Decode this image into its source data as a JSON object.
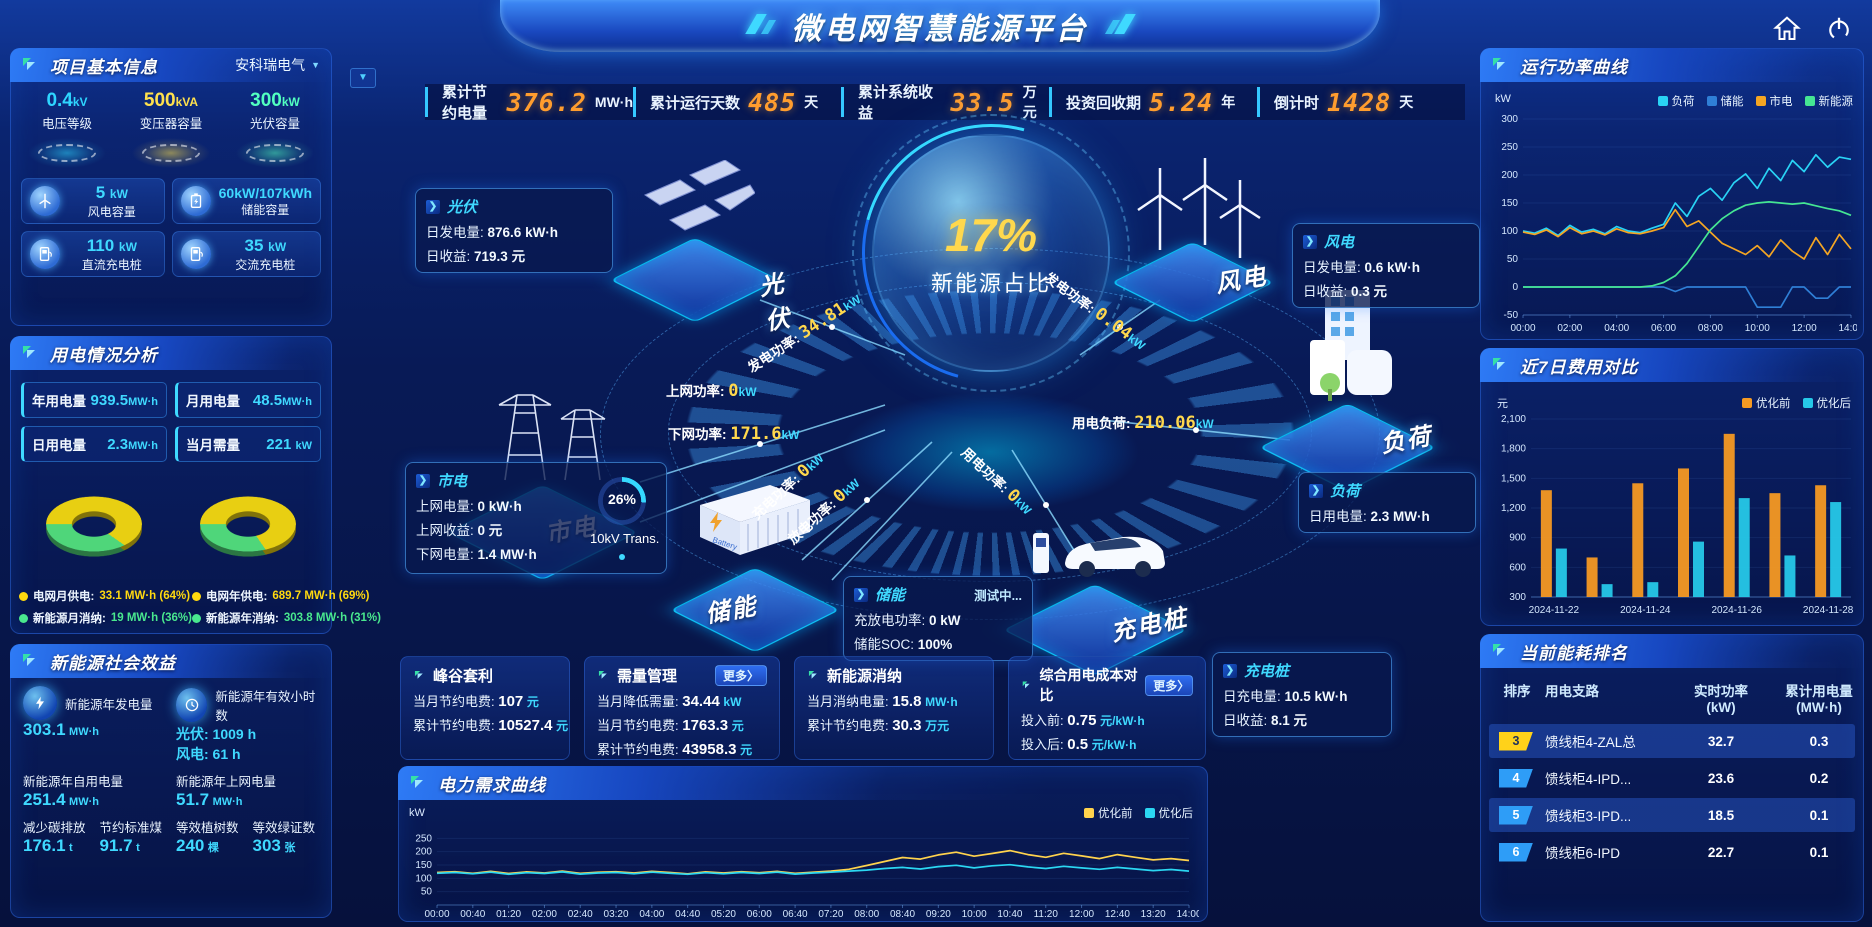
{
  "header": {
    "title": "微电网智慧能源平台"
  },
  "topbar": {
    "kpis": [
      {
        "label": "累计节约电量",
        "value": "376.2",
        "unit": "MW·h"
      },
      {
        "label": "累计运行天数",
        "value": "485",
        "unit": "天"
      },
      {
        "label": "累计系统收益",
        "value": "33.5",
        "unit": "万元"
      },
      {
        "label": "投资回收期",
        "value": "5.24",
        "unit": "年"
      },
      {
        "label": "倒计时",
        "value": "1428",
        "unit": "天"
      }
    ]
  },
  "project_panel": {
    "title": "项目基本信息",
    "company": "安科瑞电气",
    "pedestals": [
      {
        "value": "0.4",
        "unit": "kV",
        "label": "电压等级",
        "color": "#2ed5ff"
      },
      {
        "value": "500",
        "unit": "kVA",
        "label": "变压器容量",
        "color": "#ffe14d"
      },
      {
        "value": "300",
        "unit": "kW",
        "label": "光伏容量",
        "color": "#52ffc0"
      }
    ],
    "cards": [
      {
        "value": "5",
        "unit": "kW",
        "label": "风电容量",
        "icon": "wind-turbine-icon"
      },
      {
        "value": "60kW/107kWh",
        "unit": "",
        "label": "储能容量",
        "icon": "battery-icon"
      },
      {
        "value": "110",
        "unit": "kW",
        "label": "直流充电桩",
        "icon": "dc-charger-icon"
      },
      {
        "value": "35",
        "unit": "kW",
        "label": "交流充电桩",
        "icon": "ac-charger-icon"
      }
    ]
  },
  "usage_panel": {
    "title": "用电情况分析",
    "stats": [
      {
        "label": "年用电量",
        "value": "939.5",
        "unit": "MW·h"
      },
      {
        "label": "月用电量",
        "value": "48.5",
        "unit": "MW·h"
      },
      {
        "label": "日用电量",
        "value": "2.3",
        "unit": "MW·h"
      },
      {
        "label": "当月需量",
        "value": "221",
        "unit": "kW"
      }
    ],
    "month_donut": {
      "grid_pct": 64,
      "renewable_pct": 36
    },
    "year_donut": {
      "grid_pct": 69,
      "renewable_pct": 31
    },
    "legend": [
      {
        "label": "电网月供电:",
        "value": "33.1 MW·h (64%)",
        "color": "#ffd90f"
      },
      {
        "label": "新能源月消纳:",
        "value": "19 MW·h (36%)",
        "color": "#49e88e"
      },
      {
        "label": "电网年供电:",
        "value": "689.7 MW·h (69%)",
        "color": "#ffd90f"
      },
      {
        "label": "新能源年消纳:",
        "value": "303.8 MW·h (31%)",
        "color": "#49e88e"
      }
    ]
  },
  "benefit_panel": {
    "title": "新能源社会效益",
    "items": [
      {
        "label": "新能源年发电量",
        "value": "303.1",
        "unit": "MW·h"
      },
      {
        "label": "新能源年有效小时数",
        "value": "光伏: 1009 h",
        "value2": "风电: 61 h"
      },
      {
        "label": "新能源年自用电量",
        "value": "251.4",
        "unit": "MW·h"
      },
      {
        "label": "新能源年上网电量",
        "value": "51.7",
        "unit": "MW·h"
      },
      {
        "label": "减少碳排放",
        "value": "176.1",
        "unit": "t"
      },
      {
        "label": "节约标准煤",
        "value": "91.7",
        "unit": "t"
      },
      {
        "label": "等效植树数",
        "value": "240",
        "unit": "棵"
      },
      {
        "label": "等效绿证数",
        "value": "303",
        "unit": "张"
      }
    ]
  },
  "diagram": {
    "center": {
      "value": "17%",
      "label": "新能源占比"
    },
    "transformer": {
      "pct": "26%",
      "label": "10kV Trans."
    },
    "nodes": {
      "pv": "光伏",
      "wind": "风电",
      "grid": "市电",
      "load": "负荷",
      "storage": "储能",
      "charger": "充电桩"
    },
    "flows": [
      {
        "label": "发电功率:",
        "value": "34.81",
        "unit": "kW"
      },
      {
        "label": "发电功率:",
        "value": "0.04",
        "unit": "kW"
      },
      {
        "label": "上网功率:",
        "value": "0",
        "unit": "kW"
      },
      {
        "label": "下网功率:",
        "value": "171.6",
        "unit": "kW"
      },
      {
        "label": "用电负荷:",
        "value": "210.06",
        "unit": "kW"
      },
      {
        "label": "充电功率:",
        "value": "0",
        "unit": "kW"
      },
      {
        "label": "放电功率:",
        "value": "0",
        "unit": "kW"
      },
      {
        "label": "用电功率:",
        "value": "0",
        "unit": "kW"
      }
    ],
    "tooltips": {
      "pv": {
        "title": "光伏",
        "rows": [
          {
            "label": "日发电量:",
            "value": "876.6 kW·h"
          },
          {
            "label": "日收益:",
            "value": "719.3 元"
          }
        ]
      },
      "grid": {
        "title": "市电",
        "rows": [
          {
            "label": "上网电量:",
            "value": "0 kW·h"
          },
          {
            "label": "上网收益:",
            "value": "0 元"
          },
          {
            "label": "下网电量:",
            "value": "1.4 MW·h"
          }
        ]
      },
      "wind": {
        "title": "风电",
        "rows": [
          {
            "label": "日发电量:",
            "value": "0.6 kW·h"
          },
          {
            "label": "日收益:",
            "value": "0.3 元"
          }
        ]
      },
      "load": {
        "title": "负荷",
        "rows": [
          {
            "label": "日用电量:",
            "value": "2.3 MW·h"
          }
        ]
      },
      "storage": {
        "title": "储能",
        "badge": "测试中...",
        "rows": [
          {
            "label": "充放电功率:",
            "value": "0 kW"
          },
          {
            "label": "储能SOC:",
            "value": "100%"
          }
        ]
      },
      "charger": {
        "title": "充电桩",
        "rows": [
          {
            "label": "日充电量:",
            "value": "10.5 kW·h"
          },
          {
            "label": "日收益:",
            "value": "8.1 元"
          }
        ]
      }
    }
  },
  "strategy_cards": [
    {
      "title": "峰谷套利",
      "rows": [
        {
          "label": "当月节约电费:",
          "value": "107",
          "unit": "元"
        },
        {
          "label": "累计节约电费:",
          "value": "10527.4",
          "unit": "元"
        }
      ]
    },
    {
      "title": "需量管理",
      "more": "更多〉",
      "rows": [
        {
          "label": "当月降低需量:",
          "value": "34.44",
          "unit": "kW"
        },
        {
          "label": "当月节约电费:",
          "value": "1763.3",
          "unit": "元"
        },
        {
          "label": "累计节约电费:",
          "value": "43958.3",
          "unit": "元"
        }
      ]
    },
    {
      "title": "新能源消纳",
      "rows": [
        {
          "label": "当月消纳电量:",
          "value": "15.8",
          "unit": "MW·h"
        },
        {
          "label": "累计节约电费:",
          "value": "30.3",
          "unit": "万元"
        }
      ]
    },
    {
      "title": "综合用电成本对比",
      "more": "更多〉",
      "rows": [
        {
          "label": "投入前:",
          "value": "0.75",
          "unit": "元/kW·h"
        },
        {
          "label": "投入后:",
          "value": "0.5",
          "unit": "元/kW·h"
        }
      ]
    }
  ],
  "demand_panel": {
    "title": "电力需求曲线"
  },
  "power_panel": {
    "title": "运行功率曲线"
  },
  "cost_panel": {
    "title": "近7日费用对比"
  },
  "ranking_panel": {
    "title": "当前能耗排名",
    "columns": [
      {
        "l1": "排序",
        "l2": ""
      },
      {
        "l1": "用电支路",
        "l2": ""
      },
      {
        "l1": "实时功率",
        "l2": "(kW)"
      },
      {
        "l1": "累计用电量",
        "l2": "(MW·h)"
      }
    ],
    "rows": [
      {
        "rank": "3",
        "branch": "馈线柜4-ZAL总",
        "power": "32.7",
        "energy": "0.3",
        "badge": "#ffd21a"
      },
      {
        "rank": "4",
        "branch": "馈线柜4-IPD...",
        "power": "23.6",
        "energy": "0.2",
        "badge": "#2e9df7"
      },
      {
        "rank": "5",
        "branch": "馈线柜3-IPD...",
        "power": "18.5",
        "energy": "0.1",
        "badge": "#2e9df7"
      },
      {
        "rank": "6",
        "branch": "馈线柜6-IPD",
        "power": "22.7",
        "energy": "0.1",
        "badge": "#2e9df7"
      }
    ]
  },
  "chart_data": [
    {
      "type": "line",
      "title": "运行功率曲线",
      "ylabel": "kW",
      "ylim": [
        -50,
        300
      ],
      "yticks": [
        {
          "v": 300,
          "label": "300"
        },
        {
          "v": 250,
          "label": "250"
        },
        {
          "v": 200,
          "label": "200"
        },
        {
          "v": 150,
          "label": "150"
        },
        {
          "v": 100,
          "label": "100"
        },
        {
          "v": 50,
          "label": "50"
        },
        {
          "v": 0,
          "label": "0"
        },
        {
          "v": -50,
          "label": "-50"
        }
      ],
      "xticks": [
        "00:00",
        "02:00",
        "04:00",
        "06:00",
        "08:00",
        "10:00",
        "12:00",
        "14:00"
      ],
      "xtick_every": 4,
      "series": [
        {
          "name": "负荷",
          "color": "#29d3f5",
          "values": [
            100,
            96,
            105,
            92,
            110,
            98,
            103,
            95,
            108,
            100,
            97,
            105,
            112,
            150,
            126,
            162,
            176,
            155,
            186,
            202,
            176,
            212,
            190,
            226,
            206,
            236,
            214,
            232,
            228
          ]
        },
        {
          "name": "储能",
          "color": "#2f7fd6",
          "values": [
            0,
            0,
            0,
            0,
            0,
            0,
            0,
            0,
            0,
            0,
            0,
            0,
            0,
            -8,
            0,
            0,
            0,
            0,
            0,
            0,
            -36,
            -36,
            -36,
            0,
            0,
            -20,
            -20,
            0,
            0
          ]
        },
        {
          "name": "市电",
          "color": "#f5a623",
          "values": [
            98,
            94,
            102,
            90,
            106,
            95,
            100,
            93,
            104,
            97,
            95,
            100,
            106,
            138,
            108,
            118,
            98,
            78,
            68,
            58,
            74,
            54,
            84,
            64,
            50,
            88,
            58,
            94,
            68
          ]
        },
        {
          "name": "新能源",
          "color": "#45e693",
          "values": [
            0,
            0,
            0,
            0,
            0,
            0,
            0,
            0,
            0,
            0,
            0,
            2,
            8,
            20,
            42,
            72,
            102,
            122,
            136,
            146,
            150,
            152,
            150,
            148,
            150,
            145,
            140,
            136,
            128
          ]
        }
      ]
    },
    {
      "type": "bar",
      "title": "近7日费用对比",
      "ylabel": "元",
      "ylim": [
        300,
        2100
      ],
      "yticks": [
        {
          "v": 2100,
          "label": "2,100"
        },
        {
          "v": 1800,
          "label": "1,800"
        },
        {
          "v": 1500,
          "label": "1,500"
        },
        {
          "v": 1200,
          "label": "1,200"
        },
        {
          "v": 900,
          "label": "900"
        },
        {
          "v": 600,
          "label": "600"
        },
        {
          "v": 300,
          "label": "300"
        }
      ],
      "categories": [
        "2024-11-22",
        "2024-11-23",
        "2024-11-24",
        "2024-11-25",
        "2024-11-26",
        "2024-11-27",
        "2024-11-28"
      ],
      "xtick_indices": [
        0,
        2,
        4,
        6
      ],
      "series": [
        {
          "name": "优化前",
          "color": "#f59a23",
          "values": [
            1380,
            700,
            1450,
            1600,
            1950,
            1350,
            1430
          ]
        },
        {
          "name": "优化后",
          "color": "#26c9e8",
          "values": [
            790,
            430,
            450,
            860,
            1300,
            720,
            1260
          ]
        }
      ]
    },
    {
      "type": "line",
      "title": "电力需求曲线",
      "ylabel": "kW",
      "ylim": [
        0,
        300
      ],
      "yticks": [
        {
          "v": 250,
          "label": "250"
        },
        {
          "v": 200,
          "label": "200"
        },
        {
          "v": 150,
          "label": "150"
        },
        {
          "v": 100,
          "label": "100"
        },
        {
          "v": 50,
          "label": "50"
        }
      ],
      "xticks": [
        "00:00",
        "00:40",
        "01:20",
        "02:00",
        "02:40",
        "03:20",
        "04:00",
        "04:40",
        "05:20",
        "06:00",
        "06:40",
        "07:20",
        "08:00",
        "08:40",
        "09:20",
        "10:00",
        "10:40",
        "11:20",
        "12:00",
        "12:40",
        "13:20",
        "14:00"
      ],
      "xtick_every": 2,
      "series": [
        {
          "name": "优化前",
          "color": "#ffd34d",
          "values": [
            122,
            125,
            119,
            126,
            118,
            124,
            120,
            127,
            119,
            123,
            125,
            120,
            126,
            122,
            117,
            124,
            120,
            125,
            121,
            126,
            119,
            123,
            127,
            134,
            148,
            163,
            178,
            172,
            188,
            198,
            183,
            193,
            204,
            189,
            179,
            194,
            184,
            174,
            189,
            179,
            169,
            174,
            167
          ]
        },
        {
          "name": "优化后",
          "color": "#2bd7f2",
          "values": [
            119,
            122,
            117,
            123,
            115,
            121,
            118,
            124,
            116,
            120,
            122,
            117,
            123,
            119,
            115,
            121,
            117,
            122,
            118,
            123,
            116,
            120,
            123,
            127,
            131,
            137,
            141,
            135,
            144,
            149,
            139,
            147,
            151,
            143,
            137,
            145,
            139,
            134,
            141,
            135,
            129,
            133,
            127
          ]
        }
      ]
    }
  ]
}
